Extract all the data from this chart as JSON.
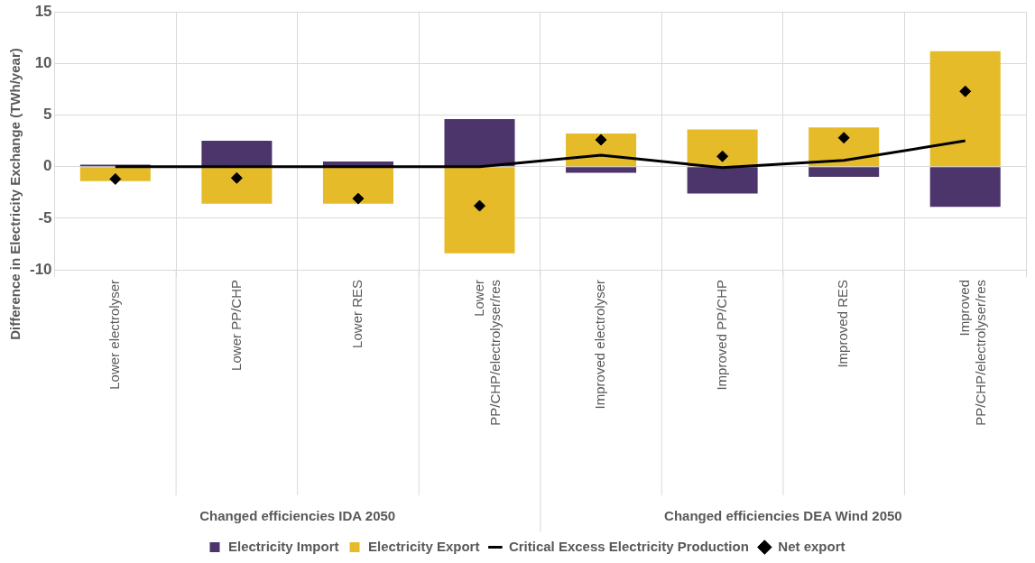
{
  "chart_data": {
    "type": "bar",
    "ylabel": "Difference in Electricity Exchange (TWh/year)",
    "categories": [
      "Lower electrolyser",
      "Lower PP/CHP",
      "Lower RES",
      "Lower PP/CHP/electrolyser/res",
      "Improved electrolyser",
      "Improved PP/CHP",
      "Improved RES",
      "Improved PP/CHP/electrolyser/res"
    ],
    "stacked": true,
    "series": [
      {
        "name": "Electricity Import",
        "type": "bar",
        "color": "#4b356b",
        "values": [
          0.2,
          2.5,
          0.5,
          4.6,
          -0.6,
          -2.6,
          -1.0,
          -3.9
        ]
      },
      {
        "name": "Electricity Export",
        "type": "bar",
        "color": "#e5bb29",
        "values": [
          -1.4,
          -3.6,
          -3.6,
          -8.4,
          3.2,
          3.6,
          3.8,
          11.2
        ]
      },
      {
        "name": "Critical Excess Electricity Production",
        "type": "line",
        "color": "#000000",
        "marker": "none",
        "line_style": "solid",
        "values": [
          0,
          0,
          0,
          0,
          1.1,
          -0.1,
          0.6,
          2.5
        ]
      },
      {
        "name": "Net export",
        "type": "scatter",
        "color": "#000000",
        "marker": "diamond",
        "values": [
          -1.2,
          -1.1,
          -3.1,
          -3.8,
          2.6,
          1.0,
          2.8,
          7.3
        ]
      }
    ],
    "ylim": [
      -10,
      15
    ],
    "yticks": [
      -10,
      -5,
      0,
      5,
      10,
      15
    ],
    "grid": true,
    "legend": "bottom",
    "annotations": [
      "Changed efficiencies IDA 2050",
      "Changed efficiencies DEA Wind 2050"
    ]
  }
}
